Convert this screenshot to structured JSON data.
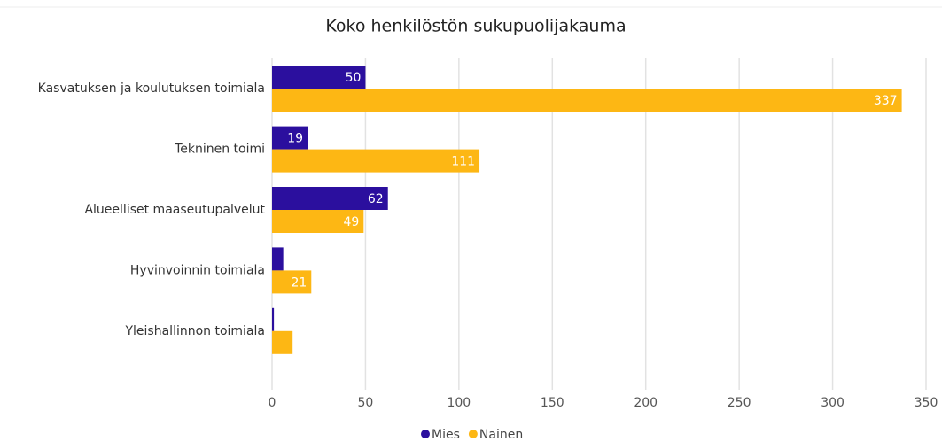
{
  "chart_data": {
    "type": "barh",
    "title": "Koko henkilöstön sukupuolijakauma",
    "categories": [
      "Kasvatuksen ja koulutuksen toimiala",
      "Tekninen toimi",
      "Alueelliset maaseutupalvelut",
      "Hyvinvoinnin toimiala",
      "Yleishallinnon toimiala"
    ],
    "series": [
      {
        "name": "Mies",
        "color": "#2b0f9e",
        "values": [
          50,
          19,
          62,
          6,
          1
        ]
      },
      {
        "name": "Nainen",
        "color": "#fdb714",
        "values": [
          337,
          111,
          49,
          21,
          11
        ]
      }
    ],
    "xlim": [
      0,
      350
    ],
    "xticks": [
      0,
      50,
      100,
      150,
      200,
      250,
      300,
      350
    ],
    "grid": true,
    "legend": "bottom"
  }
}
